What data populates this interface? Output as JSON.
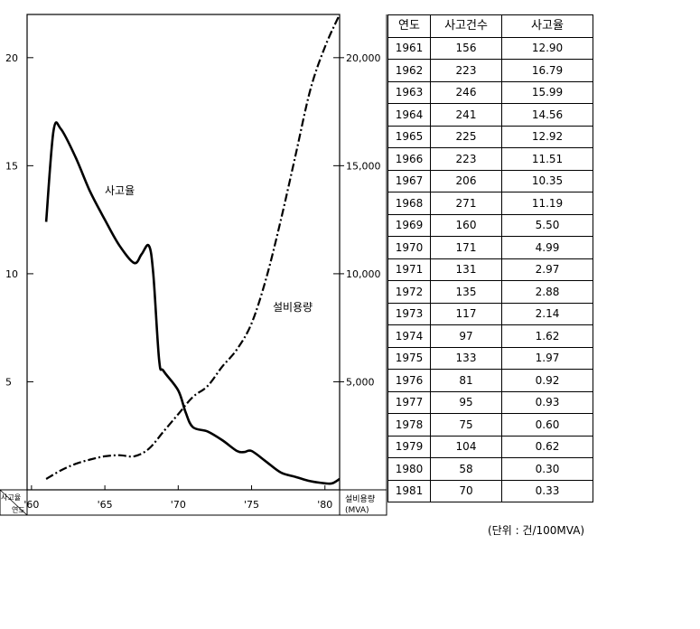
{
  "chart_data": {
    "type": "line",
    "title": "",
    "series": [
      {
        "name": "사고율",
        "axis": "left",
        "style": "solid",
        "x": [
          1961.0,
          1961.5,
          1962.0,
          1963.0,
          1964.0,
          1965.0,
          1966.0,
          1967.0,
          1967.5,
          1968.0,
          1968.3,
          1968.7,
          1969.0,
          1970.0,
          1970.5,
          1971.0,
          1972.0,
          1973.0,
          1974.0,
          1974.5,
          1975.0,
          1976.0,
          1977.0,
          1978.0,
          1979.0,
          1980.0,
          1980.5,
          1981.0
        ],
        "y": [
          12.4,
          16.6,
          16.7,
          15.4,
          13.8,
          12.5,
          11.3,
          10.5,
          10.9,
          11.3,
          10.0,
          6.0,
          5.5,
          4.6,
          3.6,
          2.9,
          2.7,
          2.3,
          1.8,
          1.75,
          1.8,
          1.3,
          0.8,
          0.6,
          0.4,
          0.3,
          0.3,
          0.5
        ]
      },
      {
        "name": "설비용량",
        "axis": "right",
        "style": "dash-dot",
        "x": [
          1961,
          1962,
          1963,
          1964,
          1965,
          1966,
          1967,
          1968,
          1969,
          1970,
          1971,
          1972,
          1973,
          1974,
          1975,
          1976,
          1977,
          1978,
          1979,
          1980,
          1981
        ],
        "y": [
          500,
          900,
          1200,
          1400,
          1550,
          1600,
          1550,
          1900,
          2700,
          3500,
          4300,
          4800,
          5700,
          6500,
          7700,
          9800,
          12500,
          15500,
          18500,
          20500,
          22000
        ]
      }
    ],
    "x_ticks": [
      "'60",
      "'65",
      "'70",
      "'75",
      "'80"
    ],
    "left_axis": {
      "ylim": [
        0,
        22
      ],
      "ticks": [
        "5",
        "10",
        "15",
        "20"
      ]
    },
    "right_axis": {
      "ylim": [
        0,
        22000
      ],
      "ticks": [
        "5,000",
        "10,000",
        "15,000",
        "20,000"
      ]
    },
    "labels": {
      "rate_curve": "사고율",
      "capacity_curve": "설비용량",
      "corner_top": "사고율",
      "corner_bottom": "연도",
      "right_axis_line1": "설비용량",
      "right_axis_line2": "(MVA)"
    },
    "table": {
      "headers": [
        "연도",
        "사고건수",
        "사고율"
      ],
      "rows": [
        [
          "1961",
          "156",
          "12.90"
        ],
        [
          "1962",
          "223",
          "16.79"
        ],
        [
          "1963",
          "246",
          "15.99"
        ],
        [
          "1964",
          "241",
          "14.56"
        ],
        [
          "1965",
          "225",
          "12.92"
        ],
        [
          "1966",
          "223",
          "11.51"
        ],
        [
          "1967",
          "206",
          "10.35"
        ],
        [
          "1968",
          "271",
          "11.19"
        ],
        [
          "1969",
          "160",
          "5.50"
        ],
        [
          "1970",
          "171",
          "4.99"
        ],
        [
          "1971",
          "131",
          "2.97"
        ],
        [
          "1972",
          "135",
          "2.88"
        ],
        [
          "1973",
          "117",
          "2.14"
        ],
        [
          "1974",
          "97",
          "1.62"
        ],
        [
          "1975",
          "133",
          "1.97"
        ],
        [
          "1976",
          "81",
          "0.92"
        ],
        [
          "1977",
          "95",
          "0.93"
        ],
        [
          "1978",
          "75",
          "0.60"
        ],
        [
          "1979",
          "104",
          "0.62"
        ],
        [
          "1980",
          "58",
          "0.30"
        ],
        [
          "1981",
          "70",
          "0.33"
        ]
      ]
    },
    "unit_note": "(단위 : 건/100MVA)"
  }
}
